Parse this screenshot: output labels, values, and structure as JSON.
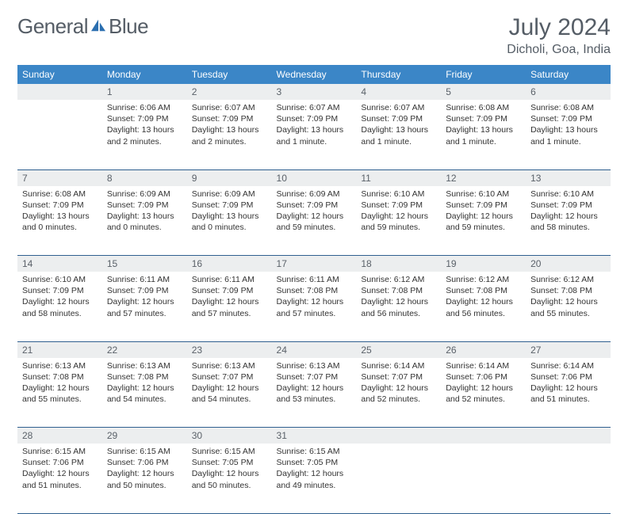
{
  "brand": {
    "part1": "General",
    "part2": "Blue"
  },
  "title": "July 2024",
  "location": "Dicholi, Goa, India",
  "colors": {
    "header_bg": "#3b86c7",
    "header_text": "#ffffff",
    "daynum_bg": "#eceeef",
    "day_border": "#2f5f8f",
    "text": "#333333",
    "muted": "#555d66",
    "logo_blue": "#2b6fb0"
  },
  "weekdays": [
    "Sunday",
    "Monday",
    "Tuesday",
    "Wednesday",
    "Thursday",
    "Friday",
    "Saturday"
  ],
  "weeks": [
    [
      null,
      {
        "n": "1",
        "sr": "6:06 AM",
        "ss": "7:09 PM",
        "dl": "13 hours and 2 minutes."
      },
      {
        "n": "2",
        "sr": "6:07 AM",
        "ss": "7:09 PM",
        "dl": "13 hours and 2 minutes."
      },
      {
        "n": "3",
        "sr": "6:07 AM",
        "ss": "7:09 PM",
        "dl": "13 hours and 1 minute."
      },
      {
        "n": "4",
        "sr": "6:07 AM",
        "ss": "7:09 PM",
        "dl": "13 hours and 1 minute."
      },
      {
        "n": "5",
        "sr": "6:08 AM",
        "ss": "7:09 PM",
        "dl": "13 hours and 1 minute."
      },
      {
        "n": "6",
        "sr": "6:08 AM",
        "ss": "7:09 PM",
        "dl": "13 hours and 1 minute."
      }
    ],
    [
      {
        "n": "7",
        "sr": "6:08 AM",
        "ss": "7:09 PM",
        "dl": "13 hours and 0 minutes."
      },
      {
        "n": "8",
        "sr": "6:09 AM",
        "ss": "7:09 PM",
        "dl": "13 hours and 0 minutes."
      },
      {
        "n": "9",
        "sr": "6:09 AM",
        "ss": "7:09 PM",
        "dl": "13 hours and 0 minutes."
      },
      {
        "n": "10",
        "sr": "6:09 AM",
        "ss": "7:09 PM",
        "dl": "12 hours and 59 minutes."
      },
      {
        "n": "11",
        "sr": "6:10 AM",
        "ss": "7:09 PM",
        "dl": "12 hours and 59 minutes."
      },
      {
        "n": "12",
        "sr": "6:10 AM",
        "ss": "7:09 PM",
        "dl": "12 hours and 59 minutes."
      },
      {
        "n": "13",
        "sr": "6:10 AM",
        "ss": "7:09 PM",
        "dl": "12 hours and 58 minutes."
      }
    ],
    [
      {
        "n": "14",
        "sr": "6:10 AM",
        "ss": "7:09 PM",
        "dl": "12 hours and 58 minutes."
      },
      {
        "n": "15",
        "sr": "6:11 AM",
        "ss": "7:09 PM",
        "dl": "12 hours and 57 minutes."
      },
      {
        "n": "16",
        "sr": "6:11 AM",
        "ss": "7:09 PM",
        "dl": "12 hours and 57 minutes."
      },
      {
        "n": "17",
        "sr": "6:11 AM",
        "ss": "7:08 PM",
        "dl": "12 hours and 57 minutes."
      },
      {
        "n": "18",
        "sr": "6:12 AM",
        "ss": "7:08 PM",
        "dl": "12 hours and 56 minutes."
      },
      {
        "n": "19",
        "sr": "6:12 AM",
        "ss": "7:08 PM",
        "dl": "12 hours and 56 minutes."
      },
      {
        "n": "20",
        "sr": "6:12 AM",
        "ss": "7:08 PM",
        "dl": "12 hours and 55 minutes."
      }
    ],
    [
      {
        "n": "21",
        "sr": "6:13 AM",
        "ss": "7:08 PM",
        "dl": "12 hours and 55 minutes."
      },
      {
        "n": "22",
        "sr": "6:13 AM",
        "ss": "7:08 PM",
        "dl": "12 hours and 54 minutes."
      },
      {
        "n": "23",
        "sr": "6:13 AM",
        "ss": "7:07 PM",
        "dl": "12 hours and 54 minutes."
      },
      {
        "n": "24",
        "sr": "6:13 AM",
        "ss": "7:07 PM",
        "dl": "12 hours and 53 minutes."
      },
      {
        "n": "25",
        "sr": "6:14 AM",
        "ss": "7:07 PM",
        "dl": "12 hours and 52 minutes."
      },
      {
        "n": "26",
        "sr": "6:14 AM",
        "ss": "7:06 PM",
        "dl": "12 hours and 52 minutes."
      },
      {
        "n": "27",
        "sr": "6:14 AM",
        "ss": "7:06 PM",
        "dl": "12 hours and 51 minutes."
      }
    ],
    [
      {
        "n": "28",
        "sr": "6:15 AM",
        "ss": "7:06 PM",
        "dl": "12 hours and 51 minutes."
      },
      {
        "n": "29",
        "sr": "6:15 AM",
        "ss": "7:06 PM",
        "dl": "12 hours and 50 minutes."
      },
      {
        "n": "30",
        "sr": "6:15 AM",
        "ss": "7:05 PM",
        "dl": "12 hours and 50 minutes."
      },
      {
        "n": "31",
        "sr": "6:15 AM",
        "ss": "7:05 PM",
        "dl": "12 hours and 49 minutes."
      },
      null,
      null,
      null
    ]
  ],
  "labels": {
    "sunrise": "Sunrise:",
    "sunset": "Sunset:",
    "daylight": "Daylight:"
  }
}
